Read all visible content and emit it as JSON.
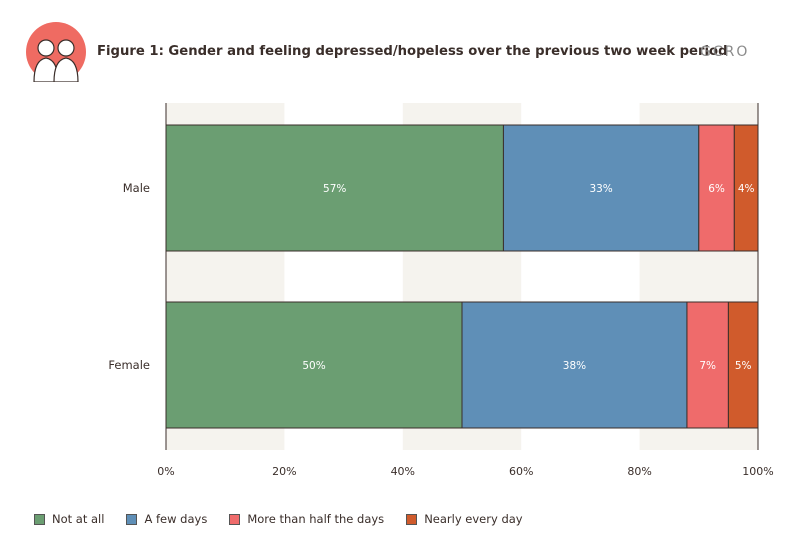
{
  "header": {
    "title": "Figure 1: Gender and feeling depressed/hopeless over the previous two week period",
    "brand": "GCRO"
  },
  "colors": {
    "not_at_all": "#6b9e72",
    "few_days": "#5f8fb7",
    "more_than_half": "#ef6b6b",
    "nearly_every_day": "#d05b2c",
    "band": "#f5f3ee",
    "logo": "#ef6b62"
  },
  "chart_data": {
    "type": "bar",
    "orientation": "horizontal",
    "stacked": true,
    "categories": [
      "Male",
      "Female"
    ],
    "series": [
      {
        "name": "Not at all",
        "values": [
          57,
          50
        ],
        "labels": [
          "57%",
          "50%"
        ],
        "color": "#6b9e72"
      },
      {
        "name": "A few days",
        "values": [
          33,
          38
        ],
        "labels": [
          "33%",
          "38%"
        ],
        "color": "#5f8fb7"
      },
      {
        "name": "More than half the days",
        "values": [
          6,
          7
        ],
        "labels": [
          "6%",
          "7%"
        ],
        "color": "#ef6b6b"
      },
      {
        "name": "Nearly every day",
        "values": [
          4,
          5
        ],
        "labels": [
          "4%",
          "5%"
        ],
        "color": "#d05b2c"
      }
    ],
    "xlim": [
      0,
      100
    ],
    "xticks": [
      "0%",
      "20%",
      "40%",
      "60%",
      "80%",
      "100%"
    ],
    "legend_position": "bottom"
  }
}
